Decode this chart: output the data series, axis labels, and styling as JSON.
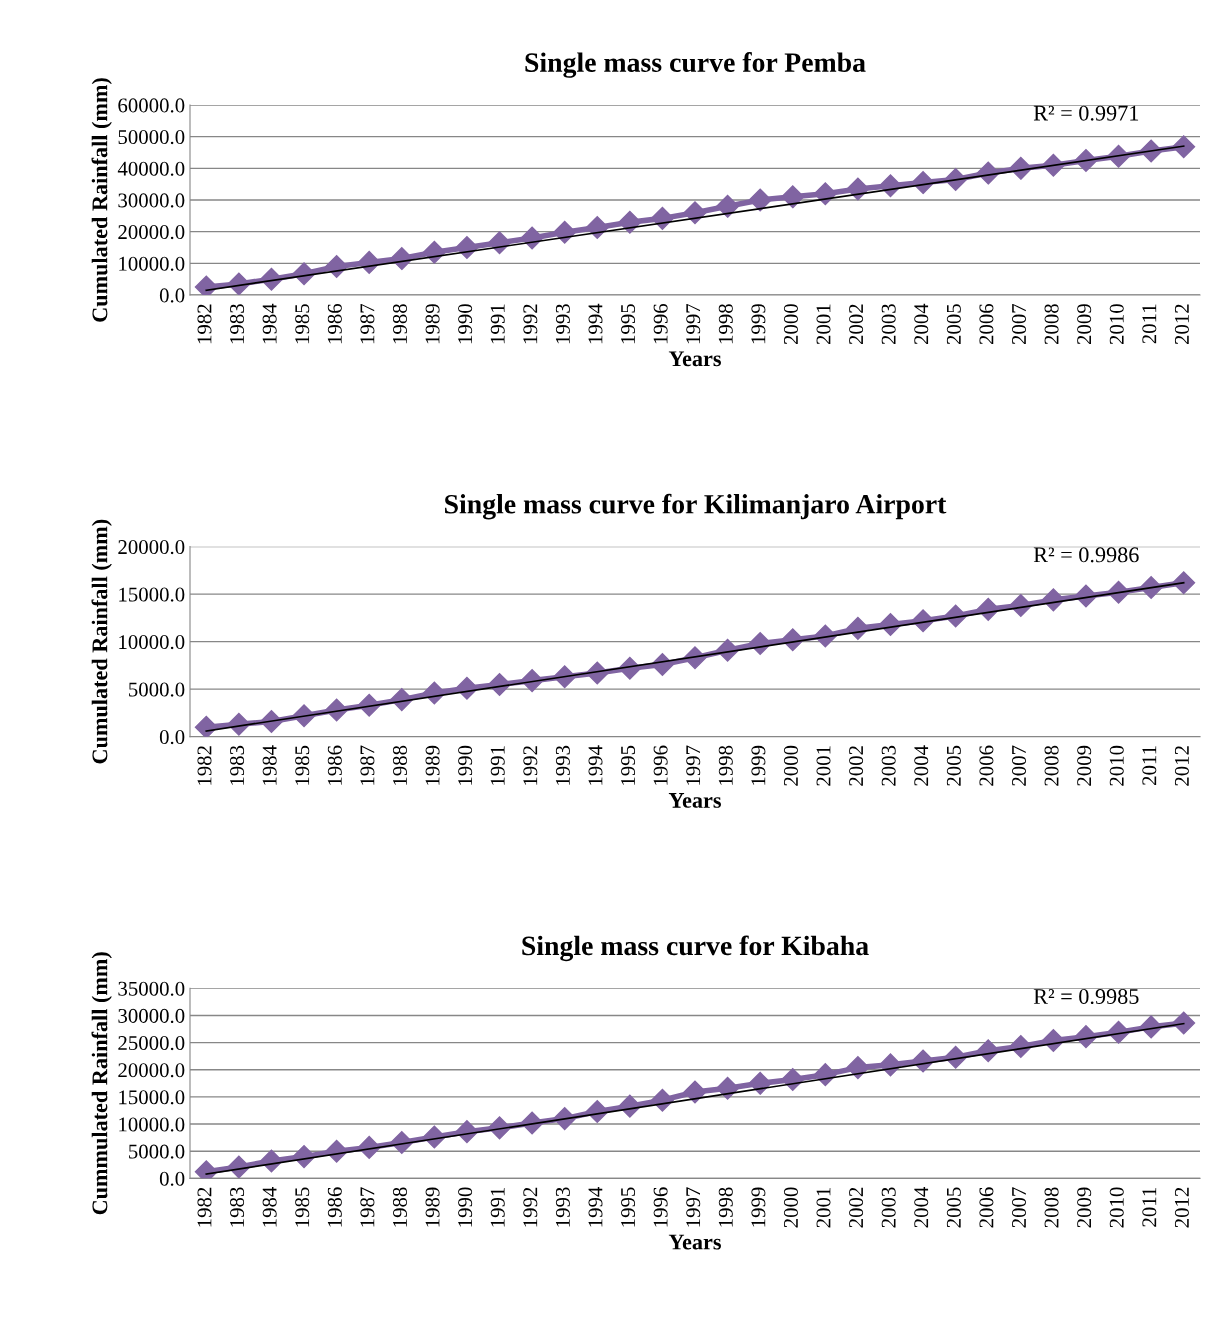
{
  "chart_data": [
    {
      "type": "line",
      "title": "Single mass curve for Pemba",
      "xlabel": "Years",
      "ylabel": "Cumulated Rainfall (mm)",
      "categories": [
        "1982",
        "1983",
        "1984",
        "1985",
        "1986",
        "1987",
        "1988",
        "1989",
        "1990",
        "1991",
        "1992",
        "1993",
        "1994",
        "1995",
        "1996",
        "1997",
        "1998",
        "1999",
        "2000",
        "2001",
        "2002",
        "2003",
        "2004",
        "2005",
        "2006",
        "2007",
        "2008",
        "2009",
        "2010",
        "2011",
        "2012"
      ],
      "series": [
        {
          "color": "#8064a2",
          "marker": "diamond",
          "values": [
            2500,
            3500,
            5000,
            6700,
            9000,
            10300,
            11500,
            13500,
            15000,
            16500,
            18000,
            19800,
            21300,
            23000,
            24200,
            26000,
            28000,
            30000,
            31000,
            32000,
            33500,
            34500,
            35500,
            36500,
            38500,
            40000,
            41000,
            42500,
            43800,
            45500,
            46800
          ]
        },
        {
          "type": "line",
          "color": "#000000",
          "marker": "none",
          "values": [
            1500,
            null,
            null,
            null,
            null,
            null,
            null,
            null,
            null,
            null,
            null,
            null,
            null,
            null,
            null,
            null,
            null,
            null,
            null,
            null,
            null,
            null,
            null,
            null,
            null,
            null,
            null,
            null,
            null,
            null,
            47000
          ]
        }
      ],
      "ylim": [
        0,
        60000
      ],
      "yticks": [
        {
          "value": 0,
          "label": "0.0"
        },
        {
          "value": 10000,
          "label": "10000.0"
        },
        {
          "value": 20000,
          "label": "20000.0"
        },
        {
          "value": 30000,
          "label": "30000.0"
        },
        {
          "value": 40000,
          "label": "40000.0"
        },
        {
          "value": 50000,
          "label": "50000.0"
        },
        {
          "value": 60000,
          "label": "60000.0"
        }
      ],
      "grid": "y",
      "legend": false,
      "annotations": [
        "R² = 0.9971"
      ]
    },
    {
      "type": "line",
      "title": "Single mass curve for Kilimanjaro Airport",
      "xlabel": "Years",
      "ylabel": "Cumulated Rainfall (mm)",
      "categories": [
        "1982",
        "1983",
        "1984",
        "1985",
        "1986",
        "1987",
        "1988",
        "1989",
        "1990",
        "1991",
        "1992",
        "1993",
        "1994",
        "1995",
        "1996",
        "1997",
        "1998",
        "1999",
        "2000",
        "2001",
        "2002",
        "2003",
        "2004",
        "2005",
        "2006",
        "2007",
        "2008",
        "2009",
        "2010",
        "2011",
        "2012"
      ],
      "series": [
        {
          "color": "#8064a2",
          "marker": "diamond",
          "values": [
            1000,
            1300,
            1600,
            2200,
            2800,
            3300,
            3900,
            4600,
            5100,
            5500,
            5900,
            6300,
            6700,
            7200,
            7600,
            8300,
            9100,
            9800,
            10200,
            10600,
            11400,
            11800,
            12200,
            12700,
            13400,
            13800,
            14400,
            14800,
            15200,
            15700,
            16200
          ]
        },
        {
          "type": "line",
          "color": "#000000",
          "marker": "none",
          "values": [
            600,
            null,
            null,
            null,
            null,
            null,
            null,
            null,
            null,
            null,
            null,
            null,
            null,
            null,
            null,
            null,
            null,
            null,
            null,
            null,
            null,
            null,
            null,
            null,
            null,
            null,
            null,
            null,
            null,
            null,
            16200
          ]
        }
      ],
      "ylim": [
        0,
        20000
      ],
      "yticks": [
        {
          "value": 0,
          "label": "0.0"
        },
        {
          "value": 5000,
          "label": "5000.0"
        },
        {
          "value": 10000,
          "label": "10000.0"
        },
        {
          "value": 15000,
          "label": "15000.0"
        },
        {
          "value": 20000,
          "label": "20000.0"
        }
      ],
      "grid": "y",
      "legend": false,
      "annotations": [
        "R² = 0.9986"
      ]
    },
    {
      "type": "line",
      "title": "Single mass curve for Kibaha",
      "xlabel": "Years",
      "ylabel": "Cummulated Rainfall (mm)",
      "categories": [
        "1982",
        "1983",
        "1984",
        "1985",
        "1986",
        "1987",
        "1988",
        "1989",
        "1990",
        "1991",
        "1992",
        "1993",
        "1994",
        "1995",
        "1996",
        "1997",
        "1998",
        "1999",
        "2000",
        "2001",
        "2002",
        "2003",
        "2004",
        "2005",
        "2006",
        "2007",
        "2008",
        "2009",
        "2010",
        "2011",
        "2012"
      ],
      "series": [
        {
          "color": "#8064a2",
          "marker": "diamond",
          "values": [
            1200,
            2100,
            3200,
            4000,
            5000,
            5700,
            6600,
            7600,
            8600,
            9300,
            10200,
            11000,
            12300,
            13300,
            14400,
            15900,
            16600,
            17500,
            18200,
            19100,
            20400,
            20900,
            21600,
            22300,
            23500,
            24300,
            25400,
            26100,
            26900,
            27900,
            28600
          ]
        },
        {
          "type": "line",
          "color": "#000000",
          "marker": "none",
          "values": [
            800,
            null,
            null,
            null,
            null,
            null,
            null,
            null,
            null,
            null,
            null,
            null,
            null,
            null,
            null,
            null,
            null,
            null,
            null,
            null,
            null,
            null,
            null,
            null,
            null,
            null,
            null,
            null,
            null,
            null,
            28500
          ]
        }
      ],
      "ylim": [
        0,
        35000
      ],
      "yticks": [
        {
          "value": 0,
          "label": "0.0"
        },
        {
          "value": 5000,
          "label": "5000.0"
        },
        {
          "value": 10000,
          "label": "10000.0"
        },
        {
          "value": 15000,
          "label": "15000.0"
        },
        {
          "value": 20000,
          "label": "20000.0"
        },
        {
          "value": 25000,
          "label": "25000.0"
        },
        {
          "value": 30000,
          "label": "30000.0"
        },
        {
          "value": 35000,
          "label": "35000.0"
        }
      ],
      "grid": "y",
      "legend": false,
      "annotations": [
        "R² = 0.9985"
      ]
    }
  ]
}
